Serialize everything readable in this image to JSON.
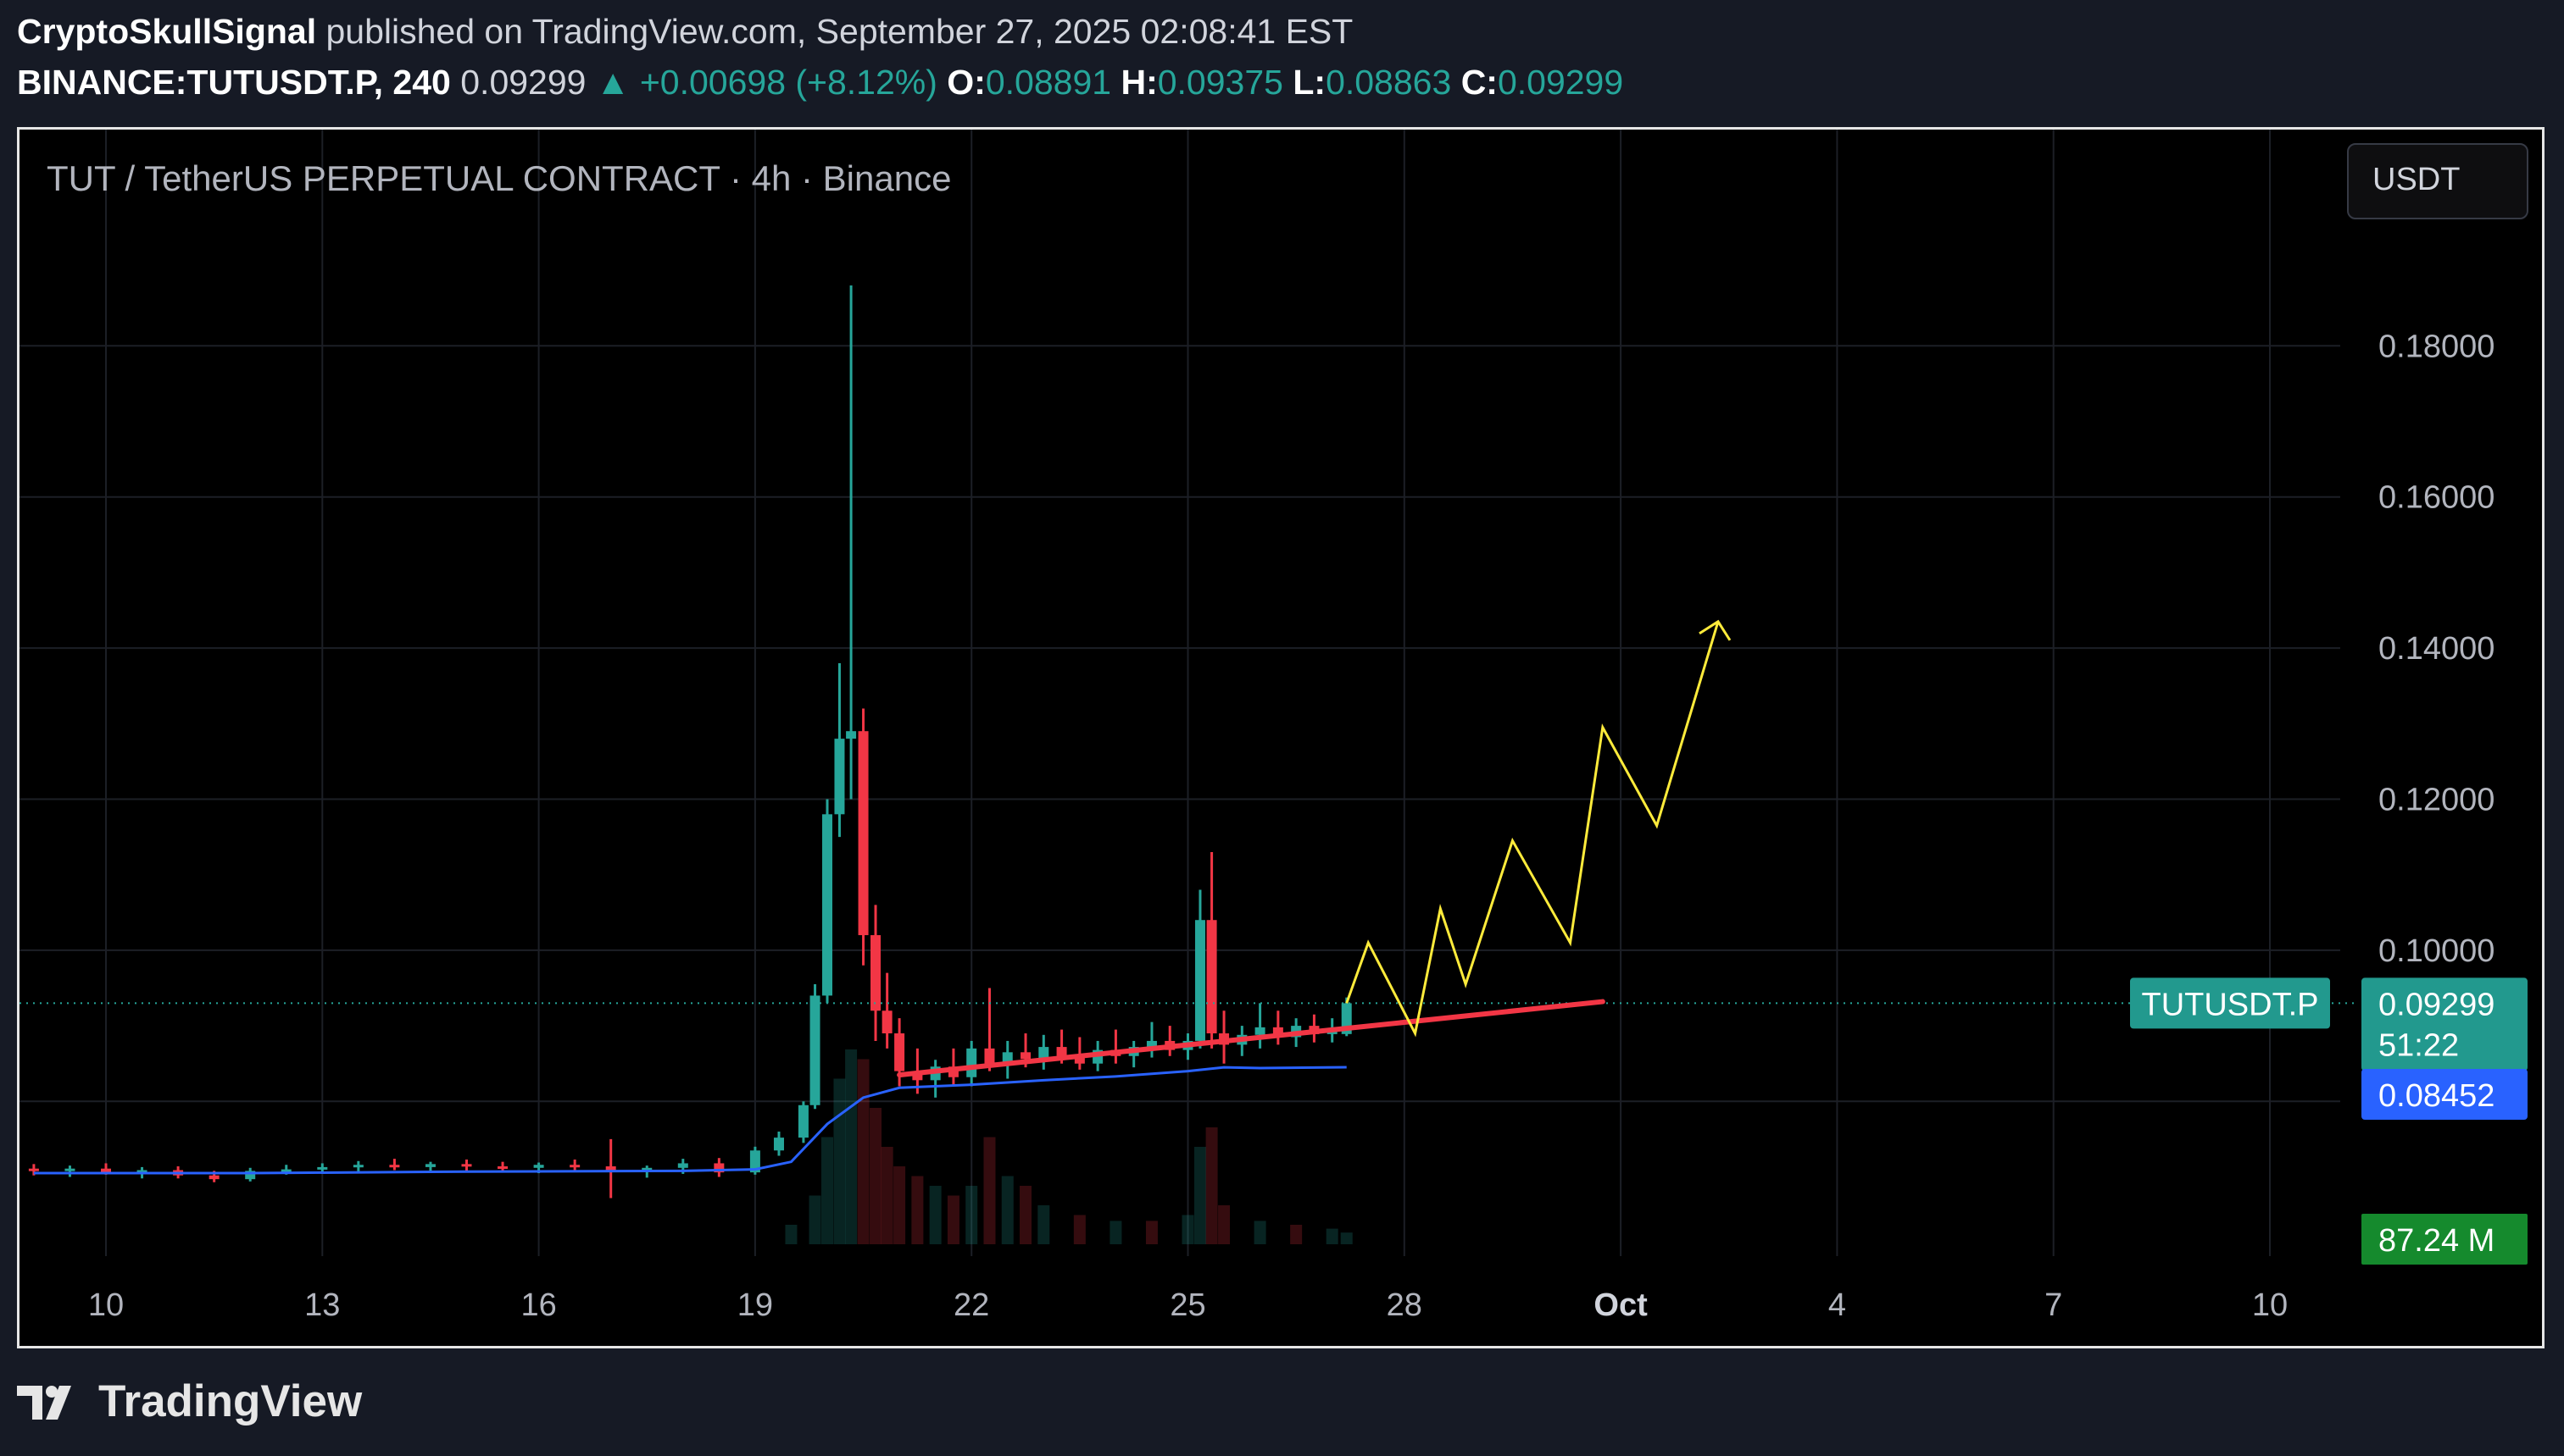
{
  "header": {
    "author": "CryptoSkullSignal",
    "published": " published on TradingView.com, September 27, 2025 02:08:41 EST",
    "symbol": "BINANCE:TUTUSDT.P, 240",
    "price": "0.09299",
    "change": "▲ +0.00698 (+8.12%)",
    "o_label": "O:",
    "o_value": "0.08891",
    "h_label": "H:",
    "h_value": "0.09375",
    "l_label": "L:",
    "l_value": "0.08863",
    "c_label": "C:",
    "c_value": "0.09299"
  },
  "chart_title": "TUT / TetherUS PERPETUAL CONTRACT · 4h · Binance",
  "currency_button": "USDT",
  "logo_text": "TradingView",
  "colors": {
    "up": "#26a69a",
    "down": "#f23645",
    "ma_line": "#2962ff",
    "trendline": "#f23645",
    "projection": "#ffeb3b",
    "price_tag_bg": "#22998e",
    "ma_tag_bg": "#2962ff",
    "volume_tag_bg": "#158a2d"
  },
  "tags": {
    "symbol_tag": "TUTUSDT.P",
    "last_price": "0.09299",
    "countdown": "51:22",
    "ma_value": "0.08452",
    "volume": "87.24 M"
  },
  "chart_data": {
    "type": "candlestick",
    "title": "TUT / TetherUS PERPETUAL CONTRACT · 4h · Binance",
    "x_tick_labels": [
      "10",
      "13",
      "16",
      "19",
      "22",
      "25",
      "28",
      "Oct",
      "4",
      "7",
      "10"
    ],
    "y_tick_labels": [
      "0.18000",
      "0.16000",
      "0.14000",
      "0.12000",
      "0.10000"
    ],
    "ylim": [
      0.064,
      0.198
    ],
    "last_price": 0.09299,
    "ma_last": 0.08452,
    "candles": [
      {
        "d": 9.0,
        "o": 0.0711,
        "h": 0.0717,
        "l": 0.0702,
        "c": 0.0708
      },
      {
        "d": 9.5,
        "o": 0.0708,
        "h": 0.0715,
        "l": 0.07,
        "c": 0.0711
      },
      {
        "d": 10.0,
        "o": 0.0711,
        "h": 0.0718,
        "l": 0.0703,
        "c": 0.0706
      },
      {
        "d": 10.5,
        "o": 0.0706,
        "h": 0.0713,
        "l": 0.0698,
        "c": 0.0709
      },
      {
        "d": 11.0,
        "o": 0.0709,
        "h": 0.0714,
        "l": 0.0698,
        "c": 0.0702
      },
      {
        "d": 11.5,
        "o": 0.0702,
        "h": 0.0708,
        "l": 0.0693,
        "c": 0.0697
      },
      {
        "d": 12.0,
        "o": 0.0697,
        "h": 0.0712,
        "l": 0.0694,
        "c": 0.0708
      },
      {
        "d": 12.5,
        "o": 0.0708,
        "h": 0.0716,
        "l": 0.0703,
        "c": 0.071
      },
      {
        "d": 13.0,
        "o": 0.071,
        "h": 0.0718,
        "l": 0.0704,
        "c": 0.0713
      },
      {
        "d": 13.5,
        "o": 0.0713,
        "h": 0.0721,
        "l": 0.0706,
        "c": 0.0716
      },
      {
        "d": 14.0,
        "o": 0.0716,
        "h": 0.0724,
        "l": 0.0709,
        "c": 0.0713
      },
      {
        "d": 14.5,
        "o": 0.0713,
        "h": 0.072,
        "l": 0.0706,
        "c": 0.0717
      },
      {
        "d": 15.0,
        "o": 0.0717,
        "h": 0.0723,
        "l": 0.0708,
        "c": 0.0714
      },
      {
        "d": 15.5,
        "o": 0.0714,
        "h": 0.072,
        "l": 0.0707,
        "c": 0.0712
      },
      {
        "d": 16.0,
        "o": 0.0712,
        "h": 0.0719,
        "l": 0.0705,
        "c": 0.0716
      },
      {
        "d": 16.5,
        "o": 0.0716,
        "h": 0.0723,
        "l": 0.0709,
        "c": 0.0714
      },
      {
        "d": 17.0,
        "o": 0.0714,
        "h": 0.075,
        "l": 0.0672,
        "c": 0.0708
      },
      {
        "d": 17.5,
        "o": 0.0708,
        "h": 0.0715,
        "l": 0.0699,
        "c": 0.0712
      },
      {
        "d": 18.0,
        "o": 0.0712,
        "h": 0.0724,
        "l": 0.0704,
        "c": 0.0718
      },
      {
        "d": 18.5,
        "o": 0.0718,
        "h": 0.0725,
        "l": 0.07,
        "c": 0.0706
      },
      {
        "d": 19.0,
        "o": 0.0706,
        "h": 0.074,
        "l": 0.0703,
        "c": 0.0735
      },
      {
        "d": 19.33,
        "o": 0.0735,
        "h": 0.076,
        "l": 0.0728,
        "c": 0.0752
      },
      {
        "d": 19.67,
        "o": 0.0752,
        "h": 0.08,
        "l": 0.0745,
        "c": 0.0795
      },
      {
        "d": 19.83,
        "o": 0.0795,
        "h": 0.0955,
        "l": 0.079,
        "c": 0.094
      },
      {
        "d": 20.0,
        "o": 0.094,
        "h": 0.12,
        "l": 0.093,
        "c": 0.118
      },
      {
        "d": 20.17,
        "o": 0.118,
        "h": 0.138,
        "l": 0.115,
        "c": 0.128
      },
      {
        "d": 20.33,
        "o": 0.128,
        "h": 0.188,
        "l": 0.12,
        "c": 0.129
      },
      {
        "d": 20.5,
        "o": 0.129,
        "h": 0.132,
        "l": 0.098,
        "c": 0.102
      },
      {
        "d": 20.67,
        "o": 0.102,
        "h": 0.106,
        "l": 0.088,
        "c": 0.092
      },
      {
        "d": 20.83,
        "o": 0.092,
        "h": 0.097,
        "l": 0.087,
        "c": 0.089
      },
      {
        "d": 21.0,
        "o": 0.089,
        "h": 0.091,
        "l": 0.082,
        "c": 0.084
      },
      {
        "d": 21.25,
        "o": 0.084,
        "h": 0.087,
        "l": 0.081,
        "c": 0.0828
      },
      {
        "d": 21.5,
        "o": 0.0828,
        "h": 0.0855,
        "l": 0.0805,
        "c": 0.0846
      },
      {
        "d": 21.75,
        "o": 0.0846,
        "h": 0.087,
        "l": 0.082,
        "c": 0.0832
      },
      {
        "d": 22.0,
        "o": 0.0832,
        "h": 0.088,
        "l": 0.082,
        "c": 0.087
      },
      {
        "d": 22.25,
        "o": 0.087,
        "h": 0.095,
        "l": 0.084,
        "c": 0.085
      },
      {
        "d": 22.5,
        "o": 0.085,
        "h": 0.088,
        "l": 0.083,
        "c": 0.0865
      },
      {
        "d": 22.75,
        "o": 0.0865,
        "h": 0.089,
        "l": 0.0845,
        "c": 0.0856
      },
      {
        "d": 23.0,
        "o": 0.0856,
        "h": 0.0888,
        "l": 0.0842,
        "c": 0.0872
      },
      {
        "d": 23.25,
        "o": 0.0872,
        "h": 0.0895,
        "l": 0.085,
        "c": 0.086
      },
      {
        "d": 23.5,
        "o": 0.086,
        "h": 0.0885,
        "l": 0.0842,
        "c": 0.085
      },
      {
        "d": 23.75,
        "o": 0.085,
        "h": 0.088,
        "l": 0.084,
        "c": 0.0868
      },
      {
        "d": 24.0,
        "o": 0.0868,
        "h": 0.0895,
        "l": 0.085,
        "c": 0.086
      },
      {
        "d": 24.25,
        "o": 0.086,
        "h": 0.088,
        "l": 0.0845,
        "c": 0.0872
      },
      {
        "d": 24.5,
        "o": 0.0872,
        "h": 0.0905,
        "l": 0.0858,
        "c": 0.088
      },
      {
        "d": 24.75,
        "o": 0.088,
        "h": 0.09,
        "l": 0.086,
        "c": 0.0868
      },
      {
        "d": 25.0,
        "o": 0.0868,
        "h": 0.089,
        "l": 0.0855,
        "c": 0.088
      },
      {
        "d": 25.17,
        "o": 0.088,
        "h": 0.108,
        "l": 0.087,
        "c": 0.104
      },
      {
        "d": 25.33,
        "o": 0.104,
        "h": 0.113,
        "l": 0.087,
        "c": 0.089
      },
      {
        "d": 25.5,
        "o": 0.089,
        "h": 0.092,
        "l": 0.085,
        "c": 0.0875
      },
      {
        "d": 25.75,
        "o": 0.0875,
        "h": 0.09,
        "l": 0.086,
        "c": 0.0888
      },
      {
        "d": 26.0,
        "o": 0.0888,
        "h": 0.093,
        "l": 0.087,
        "c": 0.0898
      },
      {
        "d": 26.25,
        "o": 0.0898,
        "h": 0.092,
        "l": 0.0875,
        "c": 0.0885
      },
      {
        "d": 26.5,
        "o": 0.0885,
        "h": 0.091,
        "l": 0.0872,
        "c": 0.09
      },
      {
        "d": 26.75,
        "o": 0.09,
        "h": 0.0915,
        "l": 0.0878,
        "c": 0.0889
      },
      {
        "d": 27.0,
        "o": 0.0889,
        "h": 0.091,
        "l": 0.0878,
        "c": 0.0895
      },
      {
        "d": 27.2,
        "o": 0.08891,
        "h": 0.09375,
        "l": 0.08863,
        "c": 0.09299
      }
    ],
    "ma_line": [
      {
        "d": 9.0,
        "v": 0.0705
      },
      {
        "d": 12.0,
        "v": 0.0705
      },
      {
        "d": 15.0,
        "v": 0.0707
      },
      {
        "d": 18.0,
        "v": 0.0708
      },
      {
        "d": 19.0,
        "v": 0.071
      },
      {
        "d": 19.5,
        "v": 0.072
      },
      {
        "d": 20.0,
        "v": 0.077
      },
      {
        "d": 20.5,
        "v": 0.0805
      },
      {
        "d": 21.0,
        "v": 0.0818
      },
      {
        "d": 22.0,
        "v": 0.0822
      },
      {
        "d": 23.0,
        "v": 0.0828
      },
      {
        "d": 24.0,
        "v": 0.0833
      },
      {
        "d": 25.0,
        "v": 0.084
      },
      {
        "d": 25.5,
        "v": 0.0845
      },
      {
        "d": 26.0,
        "v": 0.0844
      },
      {
        "d": 27.2,
        "v": 0.08452
      }
    ],
    "volume": [
      {
        "d": 19.5,
        "v": 0.1,
        "up": true
      },
      {
        "d": 19.83,
        "v": 0.25,
        "up": true
      },
      {
        "d": 20.0,
        "v": 0.55,
        "up": true
      },
      {
        "d": 20.17,
        "v": 0.85,
        "up": true
      },
      {
        "d": 20.33,
        "v": 1.0,
        "up": true
      },
      {
        "d": 20.5,
        "v": 0.95,
        "up": false
      },
      {
        "d": 20.67,
        "v": 0.7,
        "up": false
      },
      {
        "d": 20.83,
        "v": 0.5,
        "up": false
      },
      {
        "d": 21.0,
        "v": 0.4,
        "up": false
      },
      {
        "d": 21.25,
        "v": 0.35,
        "up": false
      },
      {
        "d": 21.5,
        "v": 0.3,
        "up": true
      },
      {
        "d": 21.75,
        "v": 0.25,
        "up": false
      },
      {
        "d": 22.0,
        "v": 0.3,
        "up": true
      },
      {
        "d": 22.25,
        "v": 0.55,
        "up": false
      },
      {
        "d": 22.5,
        "v": 0.35,
        "up": true
      },
      {
        "d": 22.75,
        "v": 0.3,
        "up": false
      },
      {
        "d": 23.0,
        "v": 0.2,
        "up": true
      },
      {
        "d": 23.5,
        "v": 0.15,
        "up": false
      },
      {
        "d": 24.0,
        "v": 0.12,
        "up": true
      },
      {
        "d": 24.5,
        "v": 0.12,
        "up": false
      },
      {
        "d": 25.0,
        "v": 0.15,
        "up": true
      },
      {
        "d": 25.17,
        "v": 0.5,
        "up": true
      },
      {
        "d": 25.33,
        "v": 0.6,
        "up": false
      },
      {
        "d": 25.5,
        "v": 0.2,
        "up": false
      },
      {
        "d": 26.0,
        "v": 0.12,
        "up": true
      },
      {
        "d": 26.5,
        "v": 0.1,
        "up": false
      },
      {
        "d": 27.0,
        "v": 0.08,
        "up": true
      },
      {
        "d": 27.2,
        "v": 0.06,
        "up": true
      }
    ],
    "trendline": [
      {
        "d": 21.0,
        "v": 0.0835
      },
      {
        "d": 30.75,
        "v": 0.0932
      }
    ],
    "projection": [
      {
        "d": 27.2,
        "v": 0.093
      },
      {
        "d": 27.5,
        "v": 0.101
      },
      {
        "d": 28.15,
        "v": 0.089
      },
      {
        "d": 28.5,
        "v": 0.1055
      },
      {
        "d": 28.85,
        "v": 0.0955
      },
      {
        "d": 29.5,
        "v": 0.1145
      },
      {
        "d": 30.3,
        "v": 0.101
      },
      {
        "d": 30.75,
        "v": 0.1295
      },
      {
        "d": 31.5,
        "v": 0.1165
      },
      {
        "d": 32.35,
        "v": 0.1435
      }
    ],
    "projection_arrow_tip": {
      "d": 32.35,
      "v": 0.1435
    }
  }
}
